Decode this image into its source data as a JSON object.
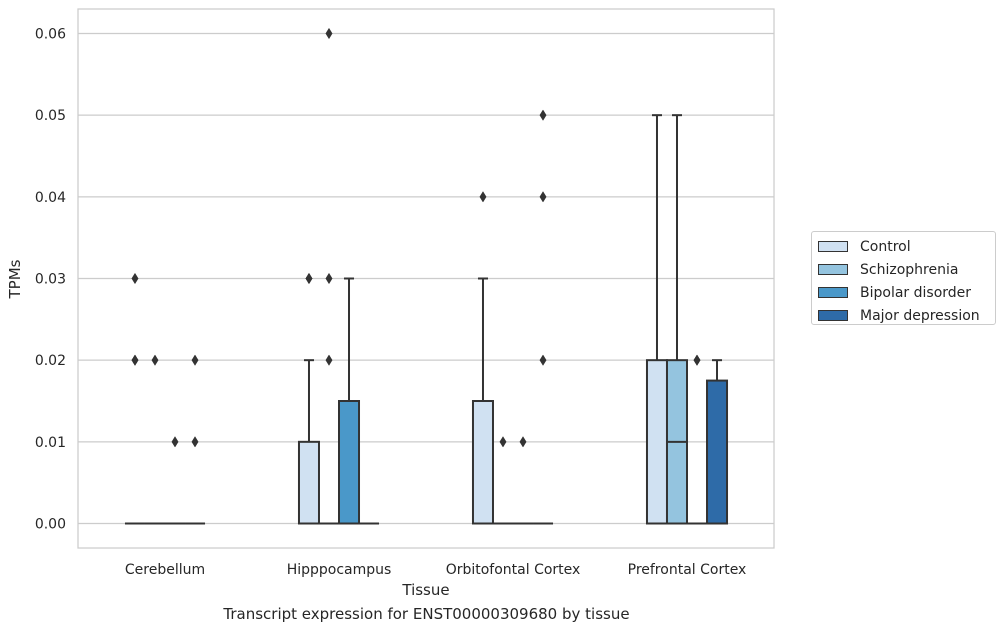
{
  "chart_data": {
    "type": "box",
    "caption": "Transcript expression for ENST00000309680 by tissue",
    "xlabel": "Tissue",
    "ylabel": "TPMs",
    "ylim": [
      -0.003,
      0.063
    ],
    "yticks": [
      "0.00",
      "0.01",
      "0.02",
      "0.03",
      "0.04",
      "0.05",
      "0.06"
    ],
    "ytick_values": [
      0,
      0.01,
      0.02,
      0.03,
      0.04,
      0.05,
      0.06
    ],
    "categories": [
      "Cerebellum",
      "Hipppocampus",
      "Orbitofontal Cortex",
      "Prefrontal Cortex"
    ],
    "grid": "horizontal",
    "legend_position": "right",
    "series": [
      {
        "name": "Control",
        "color": "#d0e1f2",
        "boxes": [
          {
            "q1": 0,
            "median": 0,
            "q3": 0,
            "whisker_low": 0,
            "whisker_high": 0,
            "outliers": [
              0.02,
              0.02,
              0.03
            ]
          },
          {
            "q1": 0,
            "median": 0,
            "q3": 0.01,
            "whisker_low": 0,
            "whisker_high": 0.02,
            "outliers": [
              0.03,
              0.03
            ]
          },
          {
            "q1": 0,
            "median": 0,
            "q3": 0.015,
            "whisker_low": 0,
            "whisker_high": 0.03,
            "outliers": [
              0.04
            ]
          },
          {
            "q1": 0,
            "median": 0,
            "q3": 0.02,
            "whisker_low": 0,
            "whisker_high": 0.05,
            "outliers": []
          }
        ]
      },
      {
        "name": "Schizophrenia",
        "color": "#94c4df",
        "boxes": [
          {
            "q1": 0,
            "median": 0,
            "q3": 0,
            "whisker_low": 0,
            "whisker_high": 0,
            "outliers": [
              0.02
            ]
          },
          {
            "q1": 0,
            "median": 0,
            "q3": 0,
            "whisker_low": 0,
            "whisker_high": 0,
            "outliers": [
              0.06,
              0.03,
              0.02
            ]
          },
          {
            "q1": 0,
            "median": 0,
            "q3": 0,
            "whisker_low": 0,
            "whisker_high": 0,
            "outliers": [
              0.01
            ]
          },
          {
            "q1": 0,
            "median": 0.01,
            "q3": 0.02,
            "whisker_low": 0,
            "whisker_high": 0.05,
            "outliers": []
          }
        ]
      },
      {
        "name": "Bipolar disorder",
        "color": "#4a98c9",
        "boxes": [
          {
            "q1": 0,
            "median": 0,
            "q3": 0,
            "whisker_low": 0,
            "whisker_high": 0,
            "outliers": [
              0.01
            ]
          },
          {
            "q1": 0,
            "median": 0,
            "q3": 0.015,
            "whisker_low": 0,
            "whisker_high": 0.03,
            "outliers": []
          },
          {
            "q1": 0,
            "median": 0,
            "q3": 0,
            "whisker_low": 0,
            "whisker_high": 0,
            "outliers": [
              0.01
            ]
          },
          {
            "q1": 0,
            "median": 0,
            "q3": 0,
            "whisker_low": 0,
            "whisker_high": 0,
            "outliers": [
              0.02,
              0.02
            ]
          }
        ]
      },
      {
        "name": "Major depression",
        "color": "#2e6ba8",
        "boxes": [
          {
            "q1": 0,
            "median": 0,
            "q3": 0,
            "whisker_low": 0,
            "whisker_high": 0,
            "outliers": [
              0.02,
              0.01
            ]
          },
          {
            "q1": 0,
            "median": 0,
            "q3": 0,
            "whisker_low": 0,
            "whisker_high": 0,
            "outliers": []
          },
          {
            "q1": 0,
            "median": 0,
            "q3": 0,
            "whisker_low": 0,
            "whisker_high": 0,
            "outliers": [
              0.05,
              0.04,
              0.02
            ]
          },
          {
            "q1": 0,
            "median": 0,
            "q3": 0.0175,
            "whisker_low": 0,
            "whisker_high": 0.02,
            "outliers": []
          }
        ]
      }
    ]
  }
}
